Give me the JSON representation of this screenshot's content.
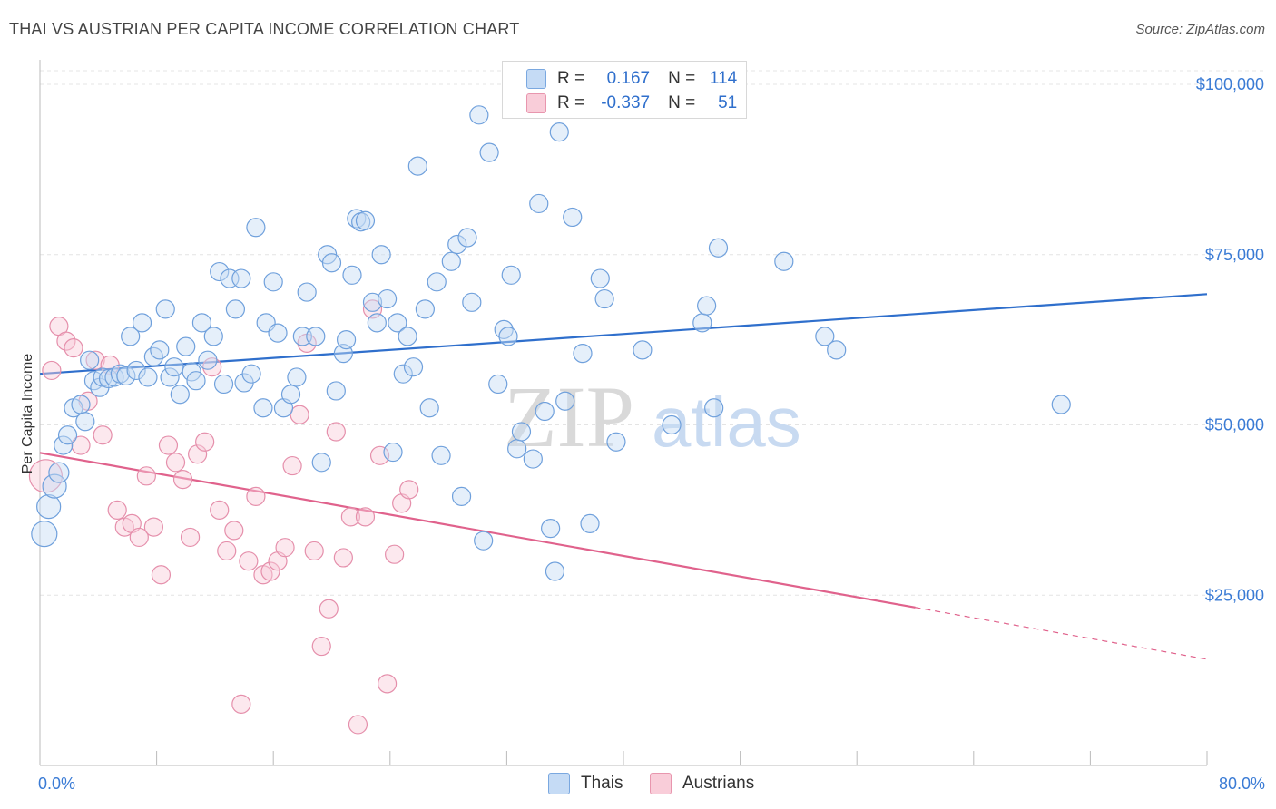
{
  "title": "THAI VS AUSTRIAN PER CAPITA INCOME CORRELATION CHART",
  "source": "Source: ZipAtlas.com",
  "watermark": {
    "zip": "ZIP",
    "atlas": "atlas"
  },
  "legend": {
    "rows": [
      {
        "r_label": "R =",
        "r_value": "0.167",
        "n_label": "N =",
        "n_value": "114"
      },
      {
        "r_label": "R =",
        "r_value": "-0.337",
        "n_label": "N =",
        "n_value": "51"
      }
    ]
  },
  "bottom_legend": [
    {
      "label": "Thais"
    },
    {
      "label": "Austrians"
    }
  ],
  "colors": {
    "blue_fill": "#c5dbf5",
    "blue_stroke": "#6fa0dc",
    "blue_line": "#2f6fcc",
    "pink_fill": "#f9cdd9",
    "pink_stroke": "#e58fab",
    "pink_line": "#e0628c",
    "grid": "#e4e4e4",
    "axis_text": "#3a7bd5"
  },
  "chart_data": {
    "type": "scatter",
    "title": "THAI VS AUSTRIAN PER CAPITA INCOME CORRELATION CHART",
    "ylabel": "Per Capita Income",
    "xlabel": "",
    "x_tick_labels": [
      "0.0%",
      "80.0%"
    ],
    "y_tick_labels": [
      "$25,000",
      "$50,000",
      "$75,000",
      "$100,000"
    ],
    "y_ticks": [
      25000,
      50000,
      75000,
      100000
    ],
    "xlim": [
      0,
      80
    ],
    "ylim": [
      0,
      102000
    ],
    "grid": true,
    "legend_placement": "top-center",
    "series": [
      {
        "name": "Thais",
        "r": 0.167,
        "n": 114,
        "trend": {
          "x": [
            0,
            80
          ],
          "y": [
            57500,
            69200
          ]
        },
        "points": [
          [
            0.3,
            34000,
            14
          ],
          [
            0.6,
            38000,
            13
          ],
          [
            1.0,
            41000,
            13
          ],
          [
            1.3,
            43000,
            11
          ],
          [
            1.6,
            47000,
            10
          ],
          [
            1.9,
            48500,
            10
          ],
          [
            2.3,
            52500,
            10
          ],
          [
            2.8,
            53000,
            10
          ],
          [
            3.1,
            50500,
            10
          ],
          [
            3.4,
            59500,
            10
          ],
          [
            3.7,
            56500,
            10
          ],
          [
            4.1,
            55500,
            10
          ],
          [
            4.3,
            57000,
            10
          ],
          [
            4.7,
            56800,
            10
          ],
          [
            5.1,
            57000,
            10
          ],
          [
            5.5,
            57500,
            10
          ],
          [
            5.9,
            57200,
            10
          ],
          [
            6.2,
            63000,
            10
          ],
          [
            6.6,
            58000,
            10
          ],
          [
            7.0,
            65000,
            10
          ],
          [
            7.4,
            57000,
            10
          ],
          [
            7.8,
            60000,
            10
          ],
          [
            8.2,
            61000,
            10
          ],
          [
            8.6,
            67000,
            10
          ],
          [
            8.9,
            57000,
            10
          ],
          [
            9.2,
            58500,
            10
          ],
          [
            9.6,
            54500,
            10
          ],
          [
            10.0,
            61500,
            10
          ],
          [
            10.4,
            57800,
            10
          ],
          [
            10.7,
            56500,
            10
          ],
          [
            11.1,
            65000,
            10
          ],
          [
            11.5,
            59500,
            10
          ],
          [
            11.9,
            63000,
            10
          ],
          [
            12.3,
            72500,
            10
          ],
          [
            12.6,
            56000,
            10
          ],
          [
            13.0,
            71500,
            10
          ],
          [
            13.4,
            67000,
            10
          ],
          [
            13.8,
            71500,
            10
          ],
          [
            14.0,
            56200,
            10
          ],
          [
            14.5,
            57500,
            10
          ],
          [
            14.8,
            79000,
            10
          ],
          [
            15.3,
            52500,
            10
          ],
          [
            15.5,
            65000,
            10
          ],
          [
            16.0,
            71000,
            10
          ],
          [
            16.3,
            63500,
            10
          ],
          [
            16.7,
            52500,
            10
          ],
          [
            17.2,
            54500,
            10
          ],
          [
            17.6,
            57000,
            10
          ],
          [
            18.0,
            63000,
            10
          ],
          [
            18.3,
            69500,
            10
          ],
          [
            18.9,
            63000,
            10
          ],
          [
            19.3,
            44500,
            10
          ],
          [
            19.7,
            75000,
            10
          ],
          [
            20.0,
            73800,
            10
          ],
          [
            20.3,
            55000,
            10
          ],
          [
            20.8,
            60500,
            10
          ],
          [
            21.0,
            62500,
            10
          ],
          [
            21.4,
            72000,
            10
          ],
          [
            21.7,
            80300,
            10
          ],
          [
            22.0,
            79800,
            10
          ],
          [
            22.3,
            80000,
            10
          ],
          [
            22.8,
            68000,
            10
          ],
          [
            23.1,
            65000,
            10
          ],
          [
            23.4,
            75000,
            10
          ],
          [
            23.8,
            68500,
            10
          ],
          [
            24.2,
            46000,
            10
          ],
          [
            24.5,
            65000,
            10
          ],
          [
            24.9,
            57500,
            10
          ],
          [
            25.2,
            63000,
            10
          ],
          [
            25.6,
            58500,
            10
          ],
          [
            25.9,
            88000,
            10
          ],
          [
            26.4,
            67000,
            10
          ],
          [
            26.7,
            52500,
            10
          ],
          [
            27.2,
            71000,
            10
          ],
          [
            27.5,
            45500,
            10
          ],
          [
            28.2,
            74000,
            10
          ],
          [
            28.6,
            76500,
            10
          ],
          [
            28.9,
            39500,
            10
          ],
          [
            29.3,
            77500,
            10
          ],
          [
            29.6,
            68000,
            10
          ],
          [
            30.1,
            95500,
            10
          ],
          [
            30.4,
            33000,
            10
          ],
          [
            30.8,
            90000,
            10
          ],
          [
            31.4,
            56000,
            10
          ],
          [
            31.8,
            64000,
            10
          ],
          [
            32.1,
            63000,
            10
          ],
          [
            32.3,
            72000,
            10
          ],
          [
            32.7,
            46500,
            10
          ],
          [
            33.0,
            49000,
            10
          ],
          [
            33.8,
            45000,
            10
          ],
          [
            34.2,
            82500,
            10
          ],
          [
            34.6,
            52000,
            10
          ],
          [
            35.0,
            34800,
            10
          ],
          [
            35.3,
            28500,
            10
          ],
          [
            35.6,
            93000,
            10
          ],
          [
            36.0,
            53500,
            10
          ],
          [
            36.5,
            80500,
            10
          ],
          [
            37.2,
            60500,
            10
          ],
          [
            37.7,
            35500,
            10
          ],
          [
            38.4,
            71500,
            10
          ],
          [
            38.7,
            68500,
            10
          ],
          [
            39.5,
            47500,
            10
          ],
          [
            41.3,
            61000,
            10
          ],
          [
            43.3,
            50000,
            10
          ],
          [
            45.4,
            65000,
            10
          ],
          [
            45.7,
            67500,
            10
          ],
          [
            46.2,
            52500,
            10
          ],
          [
            46.5,
            76000,
            10
          ],
          [
            51.0,
            74000,
            10
          ],
          [
            53.8,
            63000,
            10
          ],
          [
            54.6,
            61000,
            10
          ],
          [
            70.0,
            53000,
            10
          ]
        ]
      },
      {
        "name": "Austrians",
        "r": -0.337,
        "n": 51,
        "trend": {
          "x": [
            0,
            60
          ],
          "y": [
            45900,
            23200
          ]
        },
        "trend_dashed": {
          "x": [
            60,
            80
          ],
          "y": [
            23200,
            15600
          ]
        },
        "points": [
          [
            0.4,
            42500,
            18
          ],
          [
            0.8,
            58000,
            10
          ],
          [
            1.3,
            64500,
            10
          ],
          [
            1.8,
            62300,
            10
          ],
          [
            2.3,
            61300,
            10
          ],
          [
            2.8,
            47000,
            10
          ],
          [
            3.3,
            53500,
            10
          ],
          [
            3.8,
            59500,
            10
          ],
          [
            4.3,
            48500,
            10
          ],
          [
            4.8,
            58800,
            10
          ],
          [
            5.3,
            37500,
            10
          ],
          [
            5.8,
            35000,
            10
          ],
          [
            6.3,
            35500,
            10
          ],
          [
            6.8,
            33500,
            10
          ],
          [
            7.3,
            42500,
            10
          ],
          [
            7.8,
            35000,
            10
          ],
          [
            8.3,
            28000,
            10
          ],
          [
            8.8,
            47000,
            10
          ],
          [
            9.3,
            44500,
            10
          ],
          [
            9.8,
            42000,
            10
          ],
          [
            10.3,
            33500,
            10
          ],
          [
            10.8,
            45700,
            10
          ],
          [
            11.3,
            47500,
            10
          ],
          [
            11.8,
            58500,
            10
          ],
          [
            12.3,
            37500,
            10
          ],
          [
            12.8,
            31500,
            10
          ],
          [
            13.3,
            34500,
            10
          ],
          [
            13.8,
            9000,
            10
          ],
          [
            14.3,
            30000,
            10
          ],
          [
            14.8,
            39500,
            10
          ],
          [
            15.3,
            28000,
            10
          ],
          [
            15.8,
            28500,
            10
          ],
          [
            16.3,
            30000,
            10
          ],
          [
            16.8,
            32000,
            10
          ],
          [
            17.3,
            44000,
            10
          ],
          [
            17.8,
            51500,
            10
          ],
          [
            18.3,
            62000,
            10
          ],
          [
            18.8,
            31500,
            10
          ],
          [
            19.3,
            17500,
            10
          ],
          [
            19.8,
            23000,
            10
          ],
          [
            20.3,
            49000,
            10
          ],
          [
            20.8,
            30500,
            10
          ],
          [
            21.3,
            36500,
            10
          ],
          [
            21.8,
            6000,
            10
          ],
          [
            22.3,
            36500,
            10
          ],
          [
            22.8,
            67000,
            10
          ],
          [
            23.3,
            45500,
            10
          ],
          [
            23.8,
            12000,
            10
          ],
          [
            24.3,
            31000,
            10
          ],
          [
            24.8,
            38500,
            10
          ],
          [
            25.3,
            40500,
            10
          ]
        ]
      }
    ]
  }
}
